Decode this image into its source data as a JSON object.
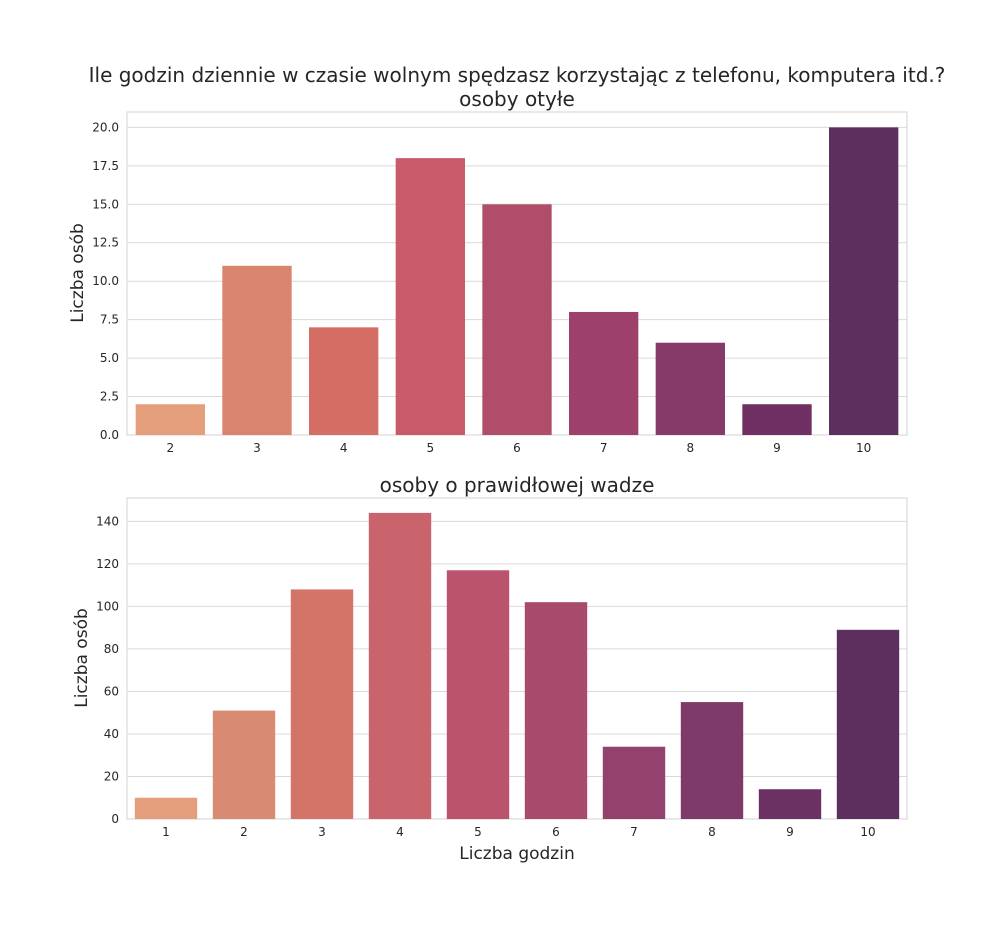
{
  "figure_title": "Ile godzin dziennie w czasie wolnym spędzasz korzystając z telefonu, komputera itd.?",
  "chart_data": [
    {
      "type": "bar",
      "title": "osoby otyłe",
      "xlabel": "",
      "ylabel": "Liczba osób",
      "categories": [
        "2",
        "3",
        "4",
        "5",
        "6",
        "7",
        "8",
        "9",
        "10"
      ],
      "values": [
        2,
        11,
        7,
        18,
        15,
        8,
        6,
        2,
        20
      ],
      "ylim": [
        0,
        21
      ],
      "yticks": [
        "0.0",
        "2.5",
        "5.0",
        "7.5",
        "10.0",
        "12.5",
        "15.0",
        "17.5",
        "20.0"
      ],
      "ytick_values": [
        0,
        2.5,
        5,
        7.5,
        10,
        12.5,
        15,
        17.5,
        20
      ],
      "colors": [
        "#e49e7b",
        "#d8846f",
        "#d46e64",
        "#c95a6a",
        "#b04e6a",
        "#9d416c",
        "#853a69",
        "#6f2f63",
        "#5c2f5e"
      ],
      "grid": true
    },
    {
      "type": "bar",
      "title": "osoby o prawidłowej wadze",
      "xlabel": "Liczba godzin",
      "ylabel": "Liczba osób",
      "categories": [
        "1",
        "2",
        "3",
        "4",
        "5",
        "6",
        "7",
        "8",
        "9",
        "10"
      ],
      "values": [
        10,
        51,
        108,
        144,
        117,
        102,
        34,
        55,
        14,
        89
      ],
      "ylim": [
        0,
        151
      ],
      "yticks": [
        "0",
        "20",
        "40",
        "60",
        "80",
        "100",
        "120",
        "140"
      ],
      "ytick_values": [
        0,
        20,
        40,
        60,
        80,
        100,
        120,
        140
      ],
      "colors": [
        "#e49e7b",
        "#d88a72",
        "#d47468",
        "#c9636c",
        "#ba536b",
        "#a74a6c",
        "#93426d",
        "#7e3a69",
        "#6b3163",
        "#5c2f5e"
      ],
      "grid": true
    }
  ]
}
